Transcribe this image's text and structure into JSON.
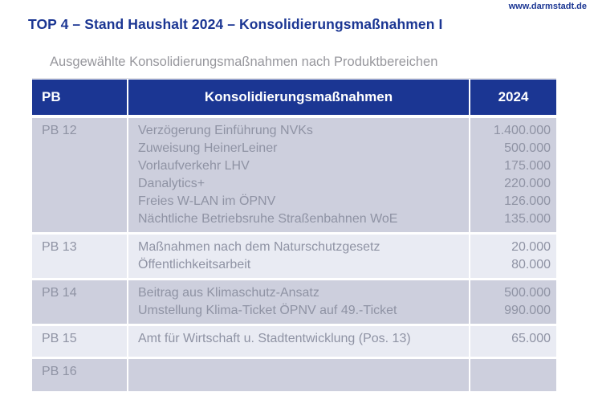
{
  "page": {
    "website": "www.darmstadt.de",
    "title": "TOP 4 – Stand Haushalt 2024 – Konsolidierungsmaßnahmen I",
    "subtitle": "Ausgewählte Konsolidierungsmaßnahmen nach Produktbereichen"
  },
  "colors": {
    "navy": "#1b3693",
    "row_dark": "#cdcfdd",
    "row_light": "#e9ebf3",
    "body_text": "#8f93a4",
    "subtitle_gray": "#97979d"
  },
  "table": {
    "headers": [
      "PB",
      "Konsolidierungsmaßnahmen",
      "2024"
    ],
    "groups": [
      {
        "pb": "PB 12",
        "rows": [
          {
            "measure": "Verzögerung Einführung NVKs",
            "amount": "1.400.000"
          },
          {
            "measure": "Zuweisung HeinerLeiner",
            "amount": "500.000"
          },
          {
            "measure": "Vorlaufverkehr LHV",
            "amount": "175.000"
          },
          {
            "measure": "Danalytics+",
            "amount": "220.000"
          },
          {
            "measure": "Freies W-LAN im ÖPNV",
            "amount": "126.000"
          },
          {
            "measure": "Nächtliche Betriebsruhe Straßenbahnen WoE",
            "amount": "135.000"
          }
        ]
      },
      {
        "pb": "PB 13",
        "rows": [
          {
            "measure": "Maßnahmen nach dem Naturschutzgesetz",
            "amount": "20.000"
          },
          {
            "measure": "Öffentlichkeitsarbeit",
            "amount": "80.000"
          }
        ]
      },
      {
        "pb": "PB 14",
        "rows": [
          {
            "measure": "Beitrag aus Klimaschutz-Ansatz",
            "amount": "500.000"
          },
          {
            "measure": "Umstellung Klima-Ticket ÖPNV auf 49.-Ticket",
            "amount": "990.000"
          }
        ]
      },
      {
        "pb": "PB 15",
        "rows": [
          {
            "measure": "Amt für Wirtschaft u. Stadtentwicklung (Pos. 13)",
            "amount": "65.000"
          }
        ]
      },
      {
        "pb": "PB 16",
        "rows": []
      }
    ]
  }
}
